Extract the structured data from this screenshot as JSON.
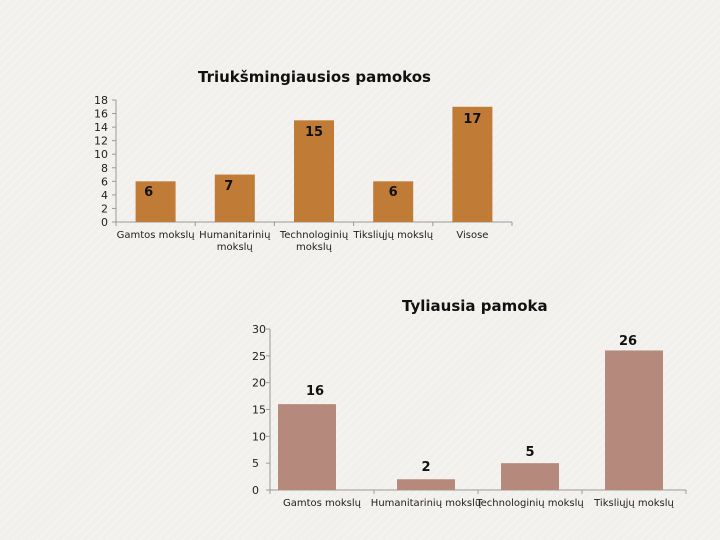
{
  "colors": {
    "chart1_bar": "#c07b36",
    "chart2_bar": "#b58a7c",
    "axis": "#9a9a9a"
  },
  "chart_data": [
    {
      "type": "bar",
      "title": "Triukšmingiausios pamokos",
      "categories": [
        "Gamtos mokslų",
        "Humanitarinių mokslų",
        "Technologinių mokslų",
        "Tiksliųjų mokslų",
        "Visose"
      ],
      "category_lines": [
        [
          "Gamtos mokslų"
        ],
        [
          "Humanitarinių",
          "mokslų"
        ],
        [
          "Technologinių",
          "mokslų"
        ],
        [
          "Tiksliųjų mokslų"
        ],
        [
          "Visose"
        ]
      ],
      "values": [
        6,
        7,
        15,
        6,
        17
      ],
      "data_labels": [
        "6",
        "7",
        "15",
        "6",
        "17"
      ],
      "ylim": [
        0,
        18
      ],
      "yticks": [
        0,
        2,
        4,
        6,
        8,
        10,
        12,
        14,
        16,
        18
      ],
      "xlabel": "",
      "ylabel": "",
      "grid": false
    },
    {
      "type": "bar",
      "title": "Tyliausia pamoka",
      "categories": [
        "Gamtos mokslų",
        "Humanitarinių mokslų",
        "Technologinių mokslų",
        "Tiksliųjų mokslų"
      ],
      "category_lines": [
        [
          "Gamtos mokslų"
        ],
        [
          "Humanitarinių mokslų"
        ],
        [
          "Technologinių mokslų"
        ],
        [
          "Tiksliųjų mokslų"
        ]
      ],
      "values": [
        16,
        2,
        5,
        26
      ],
      "data_labels": [
        "16",
        "2",
        "5",
        "26"
      ],
      "ylim": [
        0,
        30
      ],
      "yticks": [
        0,
        5,
        10,
        15,
        20,
        25,
        30
      ],
      "xlabel": "",
      "ylabel": "",
      "grid": false
    }
  ]
}
